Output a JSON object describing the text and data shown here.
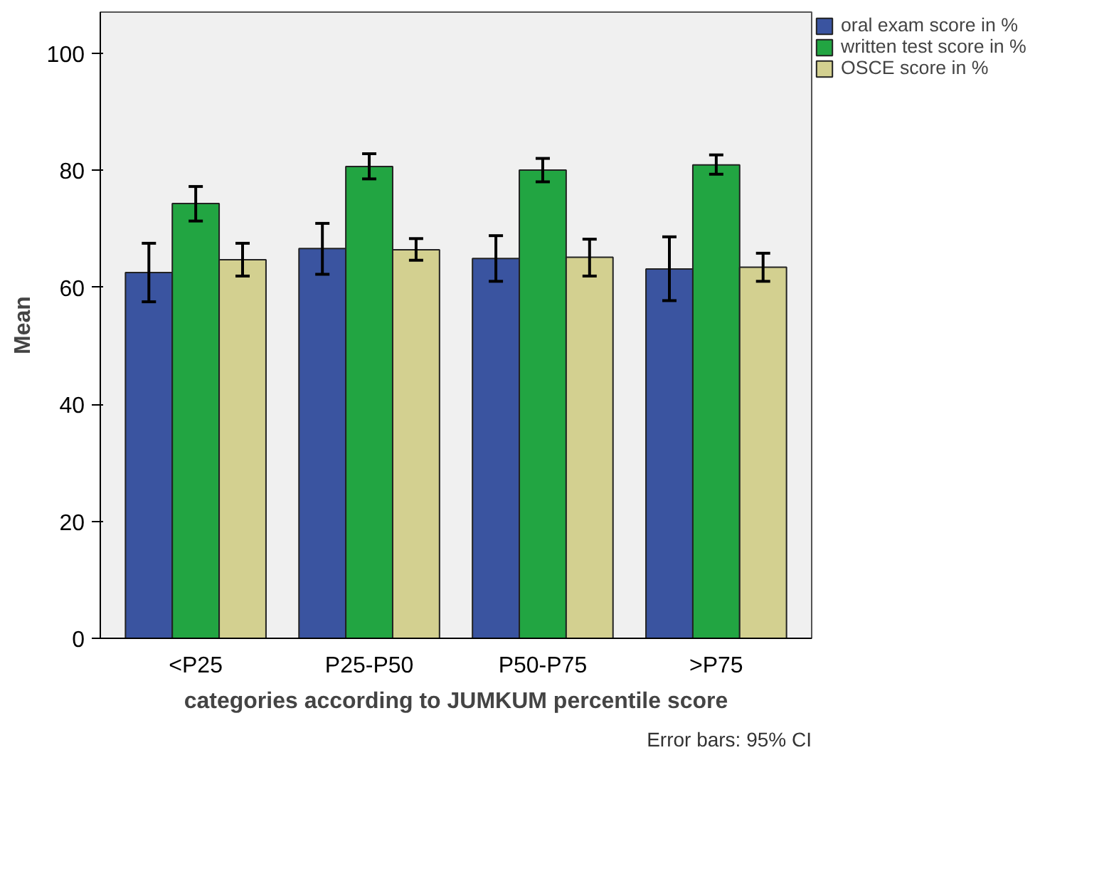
{
  "chart_data": {
    "type": "bar",
    "xlabel": "categories according to JUMKUM percentile score",
    "ylabel": "Mean",
    "categories": [
      "<P25",
      "P25-P50",
      "P50-P75",
      ">P75"
    ],
    "series": [
      {
        "name": "oral exam score in %",
        "color": "#3a54a0",
        "values": [
          62.5,
          66.6,
          64.9,
          63.1
        ],
        "errors": [
          [
            57.5,
            67.5
          ],
          [
            62.2,
            70.9
          ],
          [
            61.0,
            68.8
          ],
          [
            57.7,
            68.6
          ]
        ]
      },
      {
        "name": "written test score in %",
        "color": "#22a542",
        "values": [
          74.3,
          80.6,
          80.0,
          80.9
        ],
        "errors": [
          [
            71.3,
            77.2
          ],
          [
            78.5,
            82.8
          ],
          [
            78.0,
            82.0
          ],
          [
            79.3,
            82.6
          ]
        ]
      },
      {
        "name": "OSCE score in %",
        "color": "#d3d090",
        "values": [
          64.7,
          66.4,
          65.1,
          63.4
        ],
        "errors": [
          [
            61.9,
            67.5
          ],
          [
            64.6,
            68.3
          ],
          [
            61.9,
            68.2
          ],
          [
            61.0,
            65.8
          ]
        ]
      }
    ],
    "ylim": [
      0,
      107
    ],
    "yticks": [
      0,
      20,
      40,
      60,
      80,
      100
    ],
    "grid": false,
    "legend": "top right",
    "annotations": [
      "Error bars: 95% CI"
    ]
  }
}
